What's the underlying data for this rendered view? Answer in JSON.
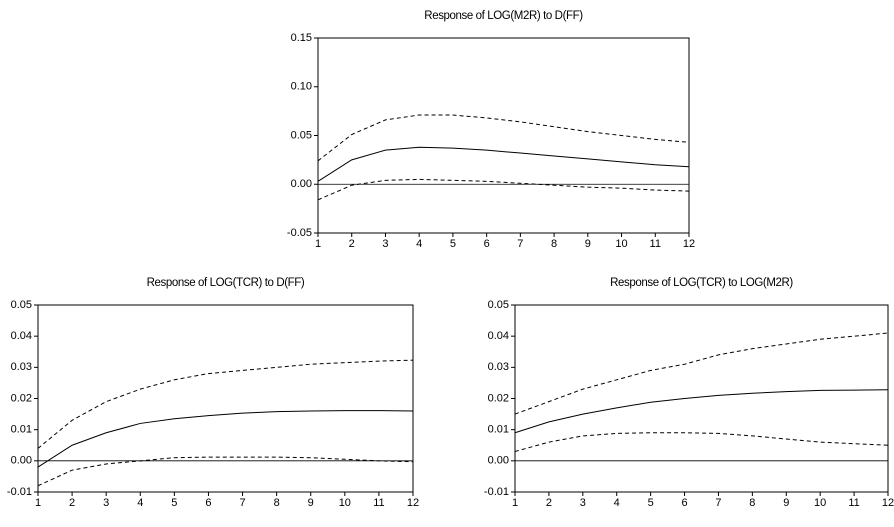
{
  "chart_data": [
    {
      "type": "line",
      "title": "Response of LOG(M2R) to D(FF)",
      "x": [
        1,
        2,
        3,
        4,
        5,
        6,
        7,
        8,
        9,
        10,
        11,
        12
      ],
      "xlim": [
        1,
        12
      ],
      "xticks": [
        1,
        2,
        3,
        4,
        5,
        6,
        7,
        8,
        9,
        10,
        11,
        12
      ],
      "ylim": [
        -0.05,
        0.15
      ],
      "yticks": [
        -0.05,
        {
          "value": 0,
          "label": "0.00"
        },
        0.05,
        {
          "value": 0.1,
          "label": "0.10"
        },
        0.15
      ],
      "zero_line": true,
      "series": [
        {
          "color": "#000000",
          "style": "solid",
          "values": [
            0.003,
            0.025,
            0.035,
            0.038,
            0.037,
            0.035,
            0.032,
            0.029,
            0.026,
            0.023,
            0.02,
            0.018
          ]
        },
        {
          "color": "#000000",
          "style": "dashed",
          "values": [
            0.024,
            0.051,
            0.066,
            0.071,
            0.071,
            0.068,
            0.064,
            0.059,
            0.054,
            0.05,
            0.046,
            0.043
          ]
        },
        {
          "color": "#000000",
          "style": "dashed",
          "values": [
            -0.016,
            -0.001,
            0.004,
            0.005,
            0.004,
            0.003,
            0.001,
            -0.001,
            -0.003,
            -0.004,
            -0.006,
            -0.007
          ]
        }
      ]
    },
    {
      "type": "line",
      "title": "Response of LOG(TCR) to D(FF)",
      "x": [
        1,
        2,
        3,
        4,
        5,
        6,
        7,
        8,
        9,
        10,
        11,
        12
      ],
      "xlim": [
        1,
        12
      ],
      "xticks": [
        1,
        2,
        3,
        4,
        5,
        6,
        7,
        8,
        9,
        10,
        11,
        12
      ],
      "ylim": [
        -0.01,
        0.05
      ],
      "yticks": [
        -0.01,
        {
          "value": 0,
          "label": "0.00"
        },
        0.01,
        0.02,
        0.03,
        0.04,
        0.05
      ],
      "zero_line": true,
      "series": [
        {
          "color": "#000000",
          "style": "solid",
          "values": [
            -0.002,
            0.005,
            0.009,
            0.012,
            0.0135,
            0.0145,
            0.0153,
            0.0158,
            0.016,
            0.0161,
            0.0161,
            0.016
          ]
        },
        {
          "color": "#000000",
          "style": "dashed",
          "values": [
            0.004,
            0.013,
            0.019,
            0.023,
            0.026,
            0.028,
            0.029,
            0.03,
            0.031,
            0.0315,
            0.032,
            0.0323
          ]
        },
        {
          "color": "#000000",
          "style": "dashed",
          "values": [
            -0.008,
            -0.003,
            -0.001,
            0.0,
            0.001,
            0.0012,
            0.0012,
            0.0012,
            0.001,
            0.0005,
            0.0,
            -0.0003
          ]
        }
      ]
    },
    {
      "type": "line",
      "title": "Response of LOG(TCR) to LOG(M2R)",
      "x": [
        1,
        2,
        3,
        4,
        5,
        6,
        7,
        8,
        9,
        10,
        11,
        12
      ],
      "xlim": [
        1,
        12
      ],
      "xticks": [
        1,
        2,
        3,
        4,
        5,
        6,
        7,
        8,
        9,
        10,
        11,
        12
      ],
      "ylim": [
        -0.01,
        0.05
      ],
      "yticks": [
        -0.01,
        {
          "value": 0,
          "label": "0.00"
        },
        0.01,
        0.02,
        0.03,
        0.04,
        0.05
      ],
      "zero_line": true,
      "series": [
        {
          "color": "#000000",
          "style": "solid",
          "values": [
            0.009,
            0.0125,
            0.015,
            0.017,
            0.0188,
            0.02,
            0.021,
            0.0217,
            0.0222,
            0.0226,
            0.0227,
            0.0228
          ]
        },
        {
          "color": "#000000",
          "style": "dashed",
          "values": [
            0.015,
            0.019,
            0.023,
            0.026,
            0.029,
            0.031,
            0.034,
            0.036,
            0.0375,
            0.039,
            0.04,
            0.041
          ]
        },
        {
          "color": "#000000",
          "style": "dashed",
          "values": [
            0.003,
            0.006,
            0.008,
            0.0088,
            0.009,
            0.009,
            0.0088,
            0.008,
            0.007,
            0.006,
            0.0055,
            0.005
          ]
        }
      ]
    }
  ]
}
